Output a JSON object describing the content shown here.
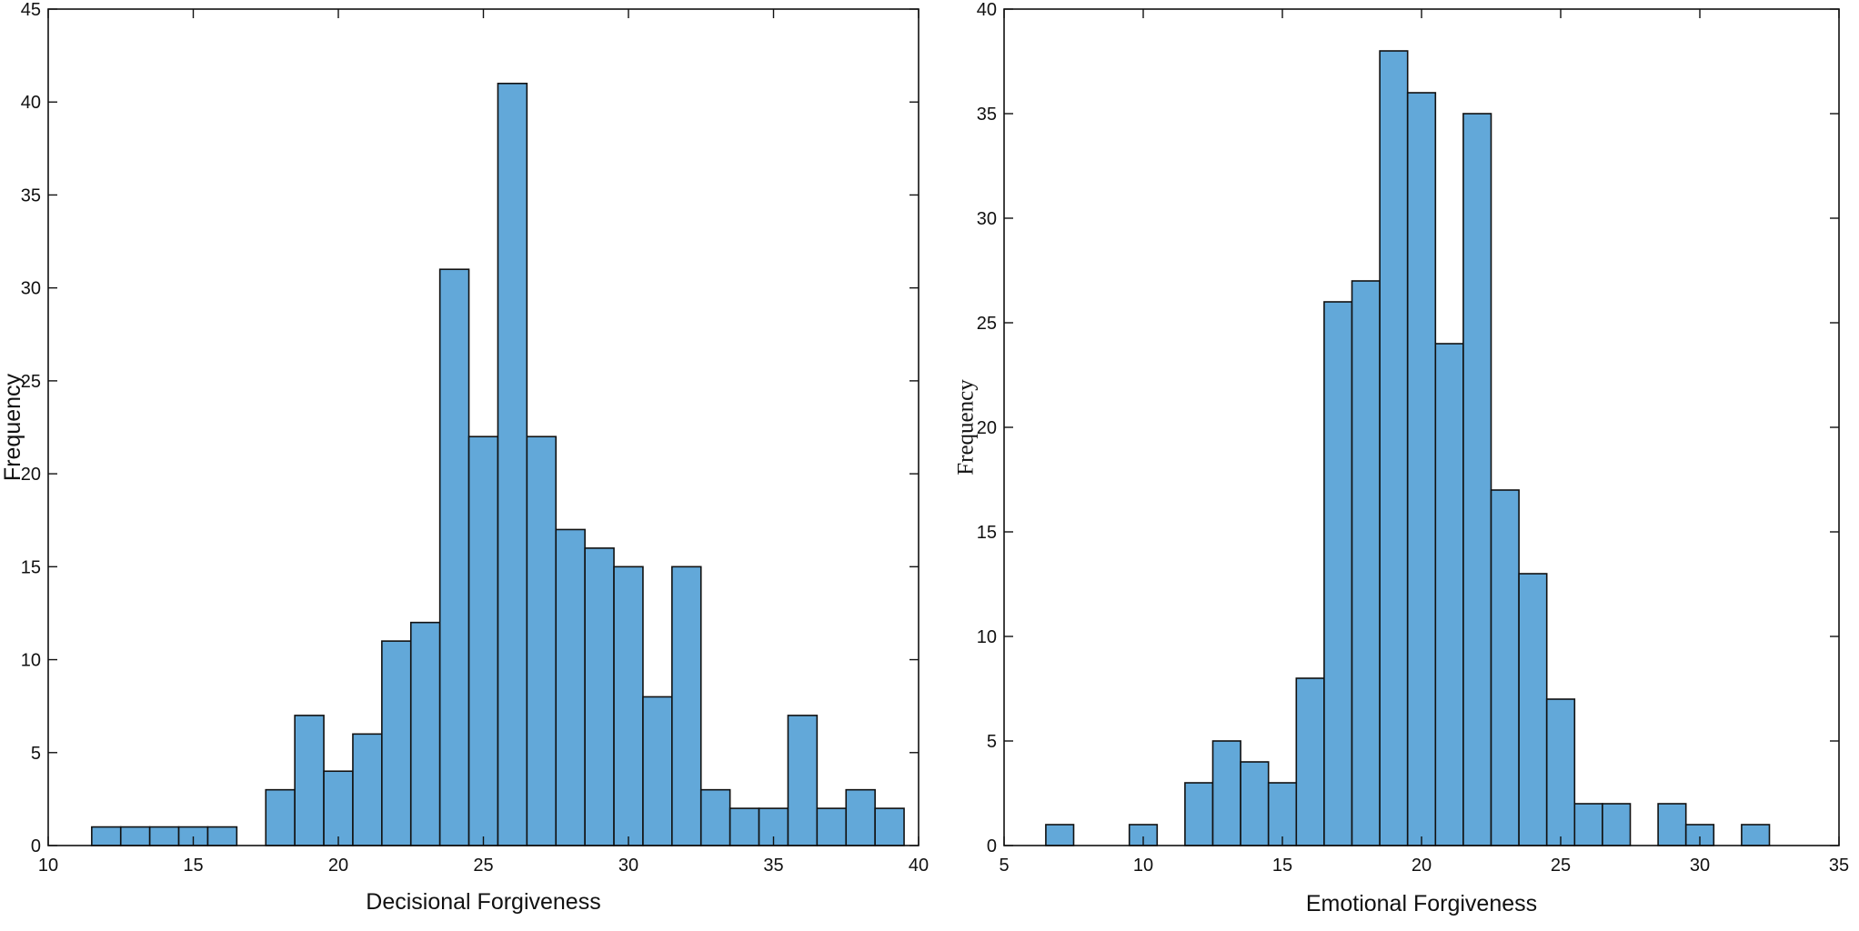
{
  "chart_data": [
    {
      "type": "bar",
      "subtype": "histogram",
      "title": "",
      "xlabel": "Decisional Forgiveness",
      "ylabel": "Frequency",
      "xlim": [
        10,
        40
      ],
      "ylim": [
        0,
        45
      ],
      "xticks": [
        10,
        15,
        20,
        25,
        30,
        35,
        40
      ],
      "yticks": [
        0,
        5,
        10,
        15,
        20,
        25,
        30,
        35,
        40,
        45
      ],
      "bin_width": 1,
      "bin_centers": [
        12,
        13,
        14,
        15,
        16,
        17,
        18,
        19,
        20,
        21,
        22,
        23,
        24,
        25,
        26,
        27,
        28,
        29,
        30,
        31,
        32,
        33,
        34,
        35,
        36,
        37,
        38,
        39
      ],
      "values": [
        1,
        1,
        1,
        1,
        1,
        0,
        3,
        7,
        4,
        6,
        11,
        12,
        31,
        22,
        41,
        22,
        17,
        16,
        15,
        8,
        15,
        3,
        2,
        2,
        7,
        2,
        3,
        2
      ],
      "bar_color": "#62a8d9",
      "edge_color": "#111111",
      "grid": false
    },
    {
      "type": "bar",
      "subtype": "histogram",
      "title": "",
      "xlabel": "Emotional Forgiveness",
      "ylabel": "Frequency",
      "xlim": [
        5,
        35
      ],
      "ylim": [
        0,
        40
      ],
      "xticks": [
        5,
        10,
        15,
        20,
        25,
        30,
        35
      ],
      "yticks": [
        0,
        5,
        10,
        15,
        20,
        25,
        30,
        35,
        40
      ],
      "bin_width": 1,
      "bin_centers": [
        7,
        8,
        9,
        10,
        11,
        12,
        13,
        14,
        15,
        16,
        17,
        18,
        19,
        20,
        21,
        22,
        23,
        24,
        25,
        26,
        27,
        28,
        29,
        30,
        31,
        32
      ],
      "values": [
        1,
        0,
        0,
        1,
        0,
        3,
        5,
        4,
        3,
        8,
        26,
        27,
        38,
        36,
        24,
        35,
        17,
        13,
        7,
        2,
        2,
        0,
        2,
        1,
        0,
        1
      ],
      "bar_color": "#62a8d9",
      "edge_color": "#111111",
      "grid": false
    }
  ]
}
